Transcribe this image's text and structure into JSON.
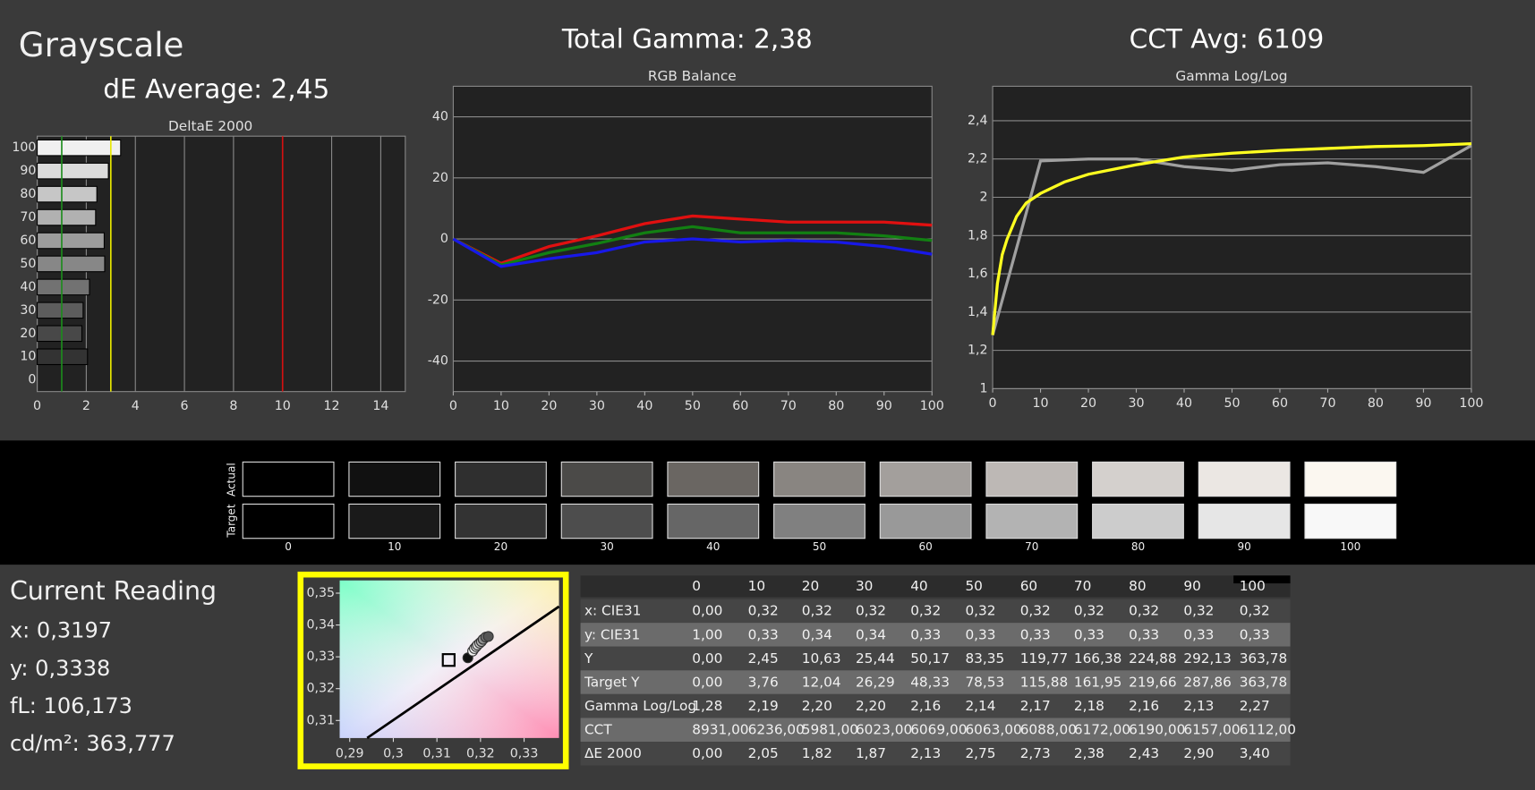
{
  "app": {
    "title": "Grayscale",
    "de_average": "dE Average: 2,45",
    "total_gamma": "Total Gamma: 2,38",
    "cct_avg": "CCT Avg: 6109"
  },
  "chart_data": [
    {
      "type": "hbar",
      "title": "DeltaE 2000",
      "categories": [
        "0",
        "10",
        "20",
        "30",
        "40",
        "50",
        "60",
        "70",
        "80",
        "90",
        "100"
      ],
      "values": [
        0,
        2.05,
        1.82,
        1.87,
        2.13,
        2.75,
        2.73,
        2.38,
        2.43,
        2.9,
        3.4
      ],
      "xlim": [
        0,
        15
      ],
      "xticks": [
        0,
        2,
        4,
        6,
        8,
        10,
        12,
        14
      ],
      "reference_lines": [
        {
          "value": 1,
          "color": "#1c8c1c"
        },
        {
          "value": 3,
          "color": "#e8e800"
        },
        {
          "value": 10,
          "color": "#d41010"
        }
      ],
      "grid": true
    },
    {
      "type": "line",
      "title": "RGB Balance",
      "x": [
        0,
        10,
        20,
        30,
        40,
        50,
        60,
        70,
        80,
        90,
        100
      ],
      "series": [
        {
          "color": "#e01010",
          "values": [
            0,
            -8,
            -2.5,
            1,
            5,
            7.5,
            6.5,
            5.5,
            5.5,
            5.5,
            4.5
          ]
        },
        {
          "color": "#128012",
          "values": [
            0,
            -8.5,
            -4.5,
            -1.5,
            2,
            4,
            2,
            2,
            2,
            1,
            -0.5
          ]
        },
        {
          "color": "#1818e8",
          "values": [
            0,
            -9,
            -6.5,
            -4.5,
            -1,
            0,
            -1,
            -0.5,
            -1,
            -2.5,
            -5
          ]
        }
      ],
      "xlim": [
        0,
        100
      ],
      "xticks": [
        0,
        10,
        20,
        30,
        40,
        50,
        60,
        70,
        80,
        90,
        100
      ],
      "ylim": [
        -50,
        50
      ],
      "yticks": [
        -40,
        -20,
        0,
        20,
        40
      ],
      "grid": true
    },
    {
      "type": "line",
      "title": "Gamma Log/Log",
      "x": [
        0,
        10,
        20,
        30,
        40,
        50,
        60,
        70,
        80,
        90,
        100
      ],
      "series": [
        {
          "color": "#a0a0a0",
          "values": [
            1.28,
            2.19,
            2.2,
            2.2,
            2.16,
            2.14,
            2.17,
            2.18,
            2.16,
            2.13,
            2.27
          ]
        },
        {
          "color": "#ffff20",
          "x": [
            0,
            1,
            2,
            3,
            5,
            7,
            10,
            15,
            20,
            30,
            40,
            50,
            60,
            70,
            80,
            90,
            100
          ],
          "values": [
            1.28,
            1.55,
            1.7,
            1.78,
            1.9,
            1.97,
            2.02,
            2.08,
            2.12,
            2.17,
            2.21,
            2.23,
            2.245,
            2.255,
            2.265,
            2.27,
            2.28
          ]
        }
      ],
      "xlim": [
        0,
        100
      ],
      "xticks": [
        0,
        10,
        20,
        30,
        40,
        50,
        60,
        70,
        80,
        90,
        100
      ],
      "ylim": [
        1,
        2.58
      ],
      "yticks": [
        1,
        {
          "value": 1.2,
          "label": "1,2"
        },
        {
          "value": 1.4,
          "label": "1,4"
        },
        {
          "value": 1.6,
          "label": "1,6"
        },
        {
          "value": 1.8,
          "label": "1,8"
        },
        2,
        {
          "value": 2.2,
          "label": "2,2"
        },
        {
          "value": 2.4,
          "label": "2,4"
        }
      ],
      "grid": true
    },
    {
      "type": "scatter",
      "x": [
        0.3171,
        0.3182,
        0.3186,
        0.319,
        0.3193,
        0.3198,
        0.3202,
        0.3206,
        0.3212,
        0.3218
      ],
      "y": [
        0.3297,
        0.3318,
        0.3326,
        0.3332,
        0.3337,
        0.3343,
        0.3348,
        0.3355,
        0.3362,
        0.3364
      ],
      "point_colors": [
        "#111111",
        "#f4f4f4",
        "#eeeeee",
        "#e4e4e4",
        "#d8d8d8",
        "#c8c8c8",
        "#b0b0b0",
        "#909090",
        "#707070",
        "#555555"
      ],
      "target": {
        "x": 0.3127,
        "y": 0.329
      },
      "locus": {
        "x": [
          0.294,
          0.338
        ],
        "y": [
          0.3045,
          0.3458
        ]
      },
      "xlim": [
        0.2877,
        0.338
      ],
      "xticks": [
        {
          "value": 0.29,
          "label": "0,29"
        },
        {
          "value": 0.3,
          "label": "0,3"
        },
        {
          "value": 0.31,
          "label": "0,31"
        },
        {
          "value": 0.32,
          "label": "0,32"
        },
        {
          "value": 0.33,
          "label": "0,33"
        }
      ],
      "ylim": [
        0.3045,
        0.354
      ],
      "yticks": [
        {
          "value": 0.31,
          "label": "0,31"
        },
        {
          "value": 0.32,
          "label": "0,32"
        },
        {
          "value": 0.33,
          "label": "0,33"
        },
        {
          "value": 0.34,
          "label": "0,34"
        },
        {
          "value": 0.35,
          "label": "0,35"
        }
      ]
    }
  ],
  "swatches": {
    "row_labels": [
      "Actual",
      "Target"
    ],
    "labels": [
      "0",
      "10",
      "20",
      "30",
      "40",
      "50",
      "60",
      "70",
      "80",
      "90",
      "100"
    ],
    "actual": [
      "#000000",
      "#111111",
      "#2f2f2f",
      "#4b4a48",
      "#6a6662",
      "#898581",
      "#a39f9c",
      "#bdb8b5",
      "#d4d0cd",
      "#ebe7e3",
      "#fbf7f0"
    ],
    "target": [
      "#000000",
      "#1a1a1a",
      "#333333",
      "#4d4d4d",
      "#666666",
      "#808080",
      "#999999",
      "#b3b3b3",
      "#cccccc",
      "#e6e6e6",
      "#f8f8f8"
    ]
  },
  "current_reading": {
    "title": "Current Reading",
    "lines": [
      "x: 0,3197",
      "y: 0,3338",
      "fL: 106,173",
      "cd/m²: 363,777"
    ]
  },
  "table": {
    "header": [
      "0",
      "10",
      "20",
      "30",
      "40",
      "50",
      "60",
      "70",
      "80",
      "90",
      "100"
    ],
    "rows": [
      [
        "x: CIE31",
        "0,00",
        "0,32",
        "0,32",
        "0,32",
        "0,32",
        "0,32",
        "0,32",
        "0,32",
        "0,32",
        "0,32",
        "0,32"
      ],
      [
        "y: CIE31",
        "1,00",
        "0,33",
        "0,34",
        "0,34",
        "0,33",
        "0,33",
        "0,33",
        "0,33",
        "0,33",
        "0,33",
        "0,33"
      ],
      [
        "Y",
        "0,00",
        "2,45",
        "10,63",
        "25,44",
        "50,17",
        "83,35",
        "119,77",
        "166,38",
        "224,88",
        "292,13",
        "363,78"
      ],
      [
        "Target Y",
        "0,00",
        "3,76",
        "12,04",
        "26,29",
        "48,33",
        "78,53",
        "115,88",
        "161,95",
        "219,66",
        "287,86",
        "363,78"
      ],
      [
        "Gamma Log/Log",
        "1,28",
        "2,19",
        "2,20",
        "2,20",
        "2,16",
        "2,14",
        "2,17",
        "2,18",
        "2,16",
        "2,13",
        "2,27"
      ],
      [
        "CCT",
        "8931,00",
        "6236,00",
        "5981,00",
        "6023,00",
        "6069,00",
        "6063,00",
        "6088,00",
        "6172,00",
        "6190,00",
        "6157,00",
        "6112,00"
      ],
      [
        "ΔE 2000",
        "0,00",
        "2,05",
        "1,82",
        "1,87",
        "2,13",
        "2,75",
        "2,73",
        "2,38",
        "2,43",
        "2,90",
        "3,40"
      ]
    ]
  }
}
